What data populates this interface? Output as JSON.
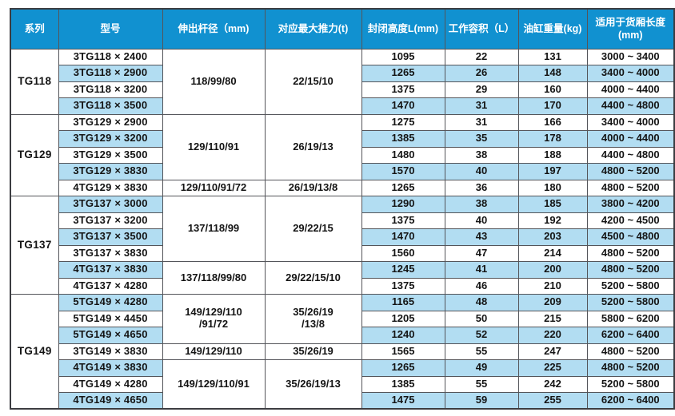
{
  "colors": {
    "header_bg": "#1191d0",
    "header_text": "#ffffff",
    "row_bg": "#ffffff",
    "row_alt_bg": "#b2ddf2",
    "grid_line": "#54555a",
    "outer_border": "#3c3d41",
    "body_text": "#141414"
  },
  "table": {
    "columns": [
      {
        "key": "series",
        "label": "系列"
      },
      {
        "key": "model",
        "label": "型号"
      },
      {
        "key": "rod_diameter",
        "label": "伸出杆径（mm)"
      },
      {
        "key": "max_thrust",
        "label": "对应最大推力(t)"
      },
      {
        "key": "closed_height",
        "label": "封闭高度L(mm)"
      },
      {
        "key": "working_volume",
        "label": "工作容积（L）"
      },
      {
        "key": "cylinder_weight",
        "label": "油缸重量(kg)"
      },
      {
        "key": "cargo_length",
        "label": "适用于货厢长度\n(mm)"
      }
    ],
    "sections": [
      {
        "series": "TG118",
        "groups": [
          {
            "rod_diameter": "118/99/80",
            "max_thrust": "22/15/10",
            "span": 4
          }
        ],
        "rows": [
          {
            "model": "3TG118 × 2400",
            "closed_height": "1095",
            "working_volume": "22",
            "cylinder_weight": "131",
            "cargo_length": "3000 ~ 3400"
          },
          {
            "model": "3TG118 × 2900",
            "closed_height": "1265",
            "working_volume": "26",
            "cylinder_weight": "148",
            "cargo_length": "3400 ~ 4000"
          },
          {
            "model": "3TG118 × 3200",
            "closed_height": "1375",
            "working_volume": "29",
            "cylinder_weight": "160",
            "cargo_length": "4000 ~ 4400"
          },
          {
            "model": "3TG118 × 3500",
            "closed_height": "1470",
            "working_volume": "31",
            "cylinder_weight": "170",
            "cargo_length": "4400 ~ 4800"
          }
        ]
      },
      {
        "series": "TG129",
        "groups": [
          {
            "rod_diameter": "129/110/91",
            "max_thrust": "26/19/13",
            "span": 4
          },
          {
            "rod_diameter": "129/110/91/72",
            "max_thrust": "26/19/13/8",
            "span": 1
          }
        ],
        "rows": [
          {
            "model": "3TG129 × 2900",
            "closed_height": "1275",
            "working_volume": "31",
            "cylinder_weight": "166",
            "cargo_length": "3400 ~ 4000"
          },
          {
            "model": "3TG129 × 3200",
            "closed_height": "1385",
            "working_volume": "35",
            "cylinder_weight": "178",
            "cargo_length": "4000 ~ 4400"
          },
          {
            "model": "3TG129 × 3500",
            "closed_height": "1480",
            "working_volume": "38",
            "cylinder_weight": "188",
            "cargo_length": "4400 ~ 4800"
          },
          {
            "model": "3TG129 × 3830",
            "closed_height": "1570",
            "working_volume": "40",
            "cylinder_weight": "197",
            "cargo_length": "4800 ~ 5200"
          },
          {
            "model": "4TG129 × 3830",
            "closed_height": "1265",
            "working_volume": "36",
            "cylinder_weight": "180",
            "cargo_length": "4800 ~ 5200"
          }
        ]
      },
      {
        "series": "TG137",
        "groups": [
          {
            "rod_diameter": "137/118/99",
            "max_thrust": "29/22/15",
            "span": 4
          },
          {
            "rod_diameter": "137/118/99/80",
            "max_thrust": "29/22/15/10",
            "span": 2
          }
        ],
        "rows": [
          {
            "model": "3TG137 × 3000",
            "closed_height": "1290",
            "working_volume": "38",
            "cylinder_weight": "185",
            "cargo_length": "3800 ~ 4200"
          },
          {
            "model": "3TG137 × 3200",
            "closed_height": "1375",
            "working_volume": "40",
            "cylinder_weight": "192",
            "cargo_length": "4200 ~ 4500"
          },
          {
            "model": "3TG137 × 3500",
            "closed_height": "1470",
            "working_volume": "43",
            "cylinder_weight": "203",
            "cargo_length": "4500 ~ 4800"
          },
          {
            "model": "3TG137 × 3830",
            "closed_height": "1560",
            "working_volume": "47",
            "cylinder_weight": "214",
            "cargo_length": "4800 ~ 5200"
          },
          {
            "model": "4TG137 × 3830",
            "closed_height": "1245",
            "working_volume": "41",
            "cylinder_weight": "200",
            "cargo_length": "4800 ~ 5200"
          },
          {
            "model": "4TG137 × 4280",
            "closed_height": "1375",
            "working_volume": "46",
            "cylinder_weight": "210",
            "cargo_length": "5200 ~ 5800"
          }
        ]
      },
      {
        "series": "TG149",
        "groups": [
          {
            "rod_diameter": "149/129/110\n/91/72",
            "max_thrust": "35/26/19\n/13/8",
            "span": 3
          },
          {
            "rod_diameter": "149/129/110",
            "max_thrust": "35/26/19",
            "span": 1
          },
          {
            "rod_diameter": "149/129/110/91",
            "max_thrust": "35/26/19/13",
            "span": 3
          }
        ],
        "rows": [
          {
            "model": "5TG149 × 4280",
            "closed_height": "1165",
            "working_volume": "48",
            "cylinder_weight": "209",
            "cargo_length": "5200 ~ 5800"
          },
          {
            "model": "5TG149 × 4450",
            "closed_height": "1205",
            "working_volume": "50",
            "cylinder_weight": "215",
            "cargo_length": "5800 ~ 6200"
          },
          {
            "model": "5TG149 × 4650",
            "closed_height": "1240",
            "working_volume": "52",
            "cylinder_weight": "220",
            "cargo_length": "6200 ~ 6400"
          },
          {
            "model": "3TG149 × 3830",
            "closed_height": "1565",
            "working_volume": "55",
            "cylinder_weight": "247",
            "cargo_length": "4800 ~ 5200"
          },
          {
            "model": "4TG149 × 3830",
            "closed_height": "1265",
            "working_volume": "49",
            "cylinder_weight": "225",
            "cargo_length": "4800 ~ 5200"
          },
          {
            "model": "4TG149 × 4280",
            "closed_height": "1385",
            "working_volume": "55",
            "cylinder_weight": "242",
            "cargo_length": "5200 ~ 5800"
          },
          {
            "model": "4TG149 × 4650",
            "closed_height": "1475",
            "working_volume": "59",
            "cylinder_weight": "255",
            "cargo_length": "6200 ~ 6400"
          }
        ]
      }
    ]
  }
}
